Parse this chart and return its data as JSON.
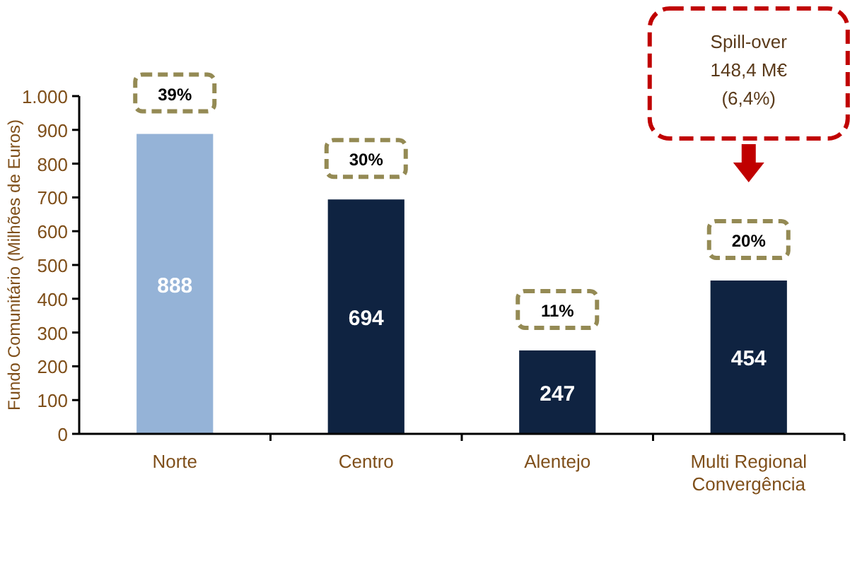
{
  "chart_data": {
    "type": "bar",
    "ylabel": "Fundo Comunitário (Milhões de Euros)",
    "categories": [
      "Norte",
      "Centro",
      "Alentejo",
      "Multi Regional Convergência"
    ],
    "values": [
      888,
      694,
      247,
      454
    ],
    "colors": [
      "#95b3d7",
      "#0f2341",
      "#0f2341",
      "#0f2341"
    ],
    "ylim": [
      0,
      1000
    ],
    "yticks": [
      0,
      100,
      200,
      300,
      400,
      500,
      600,
      700,
      800,
      900,
      {
        "value": 1000,
        "label": "1.000"
      }
    ],
    "grid": false,
    "data_labels": true,
    "annotations": [
      {
        "text": "39%",
        "x": "Norte",
        "y": 888
      },
      {
        "text": "30%",
        "x": "Centro",
        "y": 694
      },
      {
        "text": "11%",
        "x": "Alentejo",
        "y": 247
      },
      {
        "text": "20%",
        "x": "Multi Regional Convergência",
        "y": 454
      },
      "Spill-over\n148,4 M€\n(6,4%)"
    ]
  }
}
